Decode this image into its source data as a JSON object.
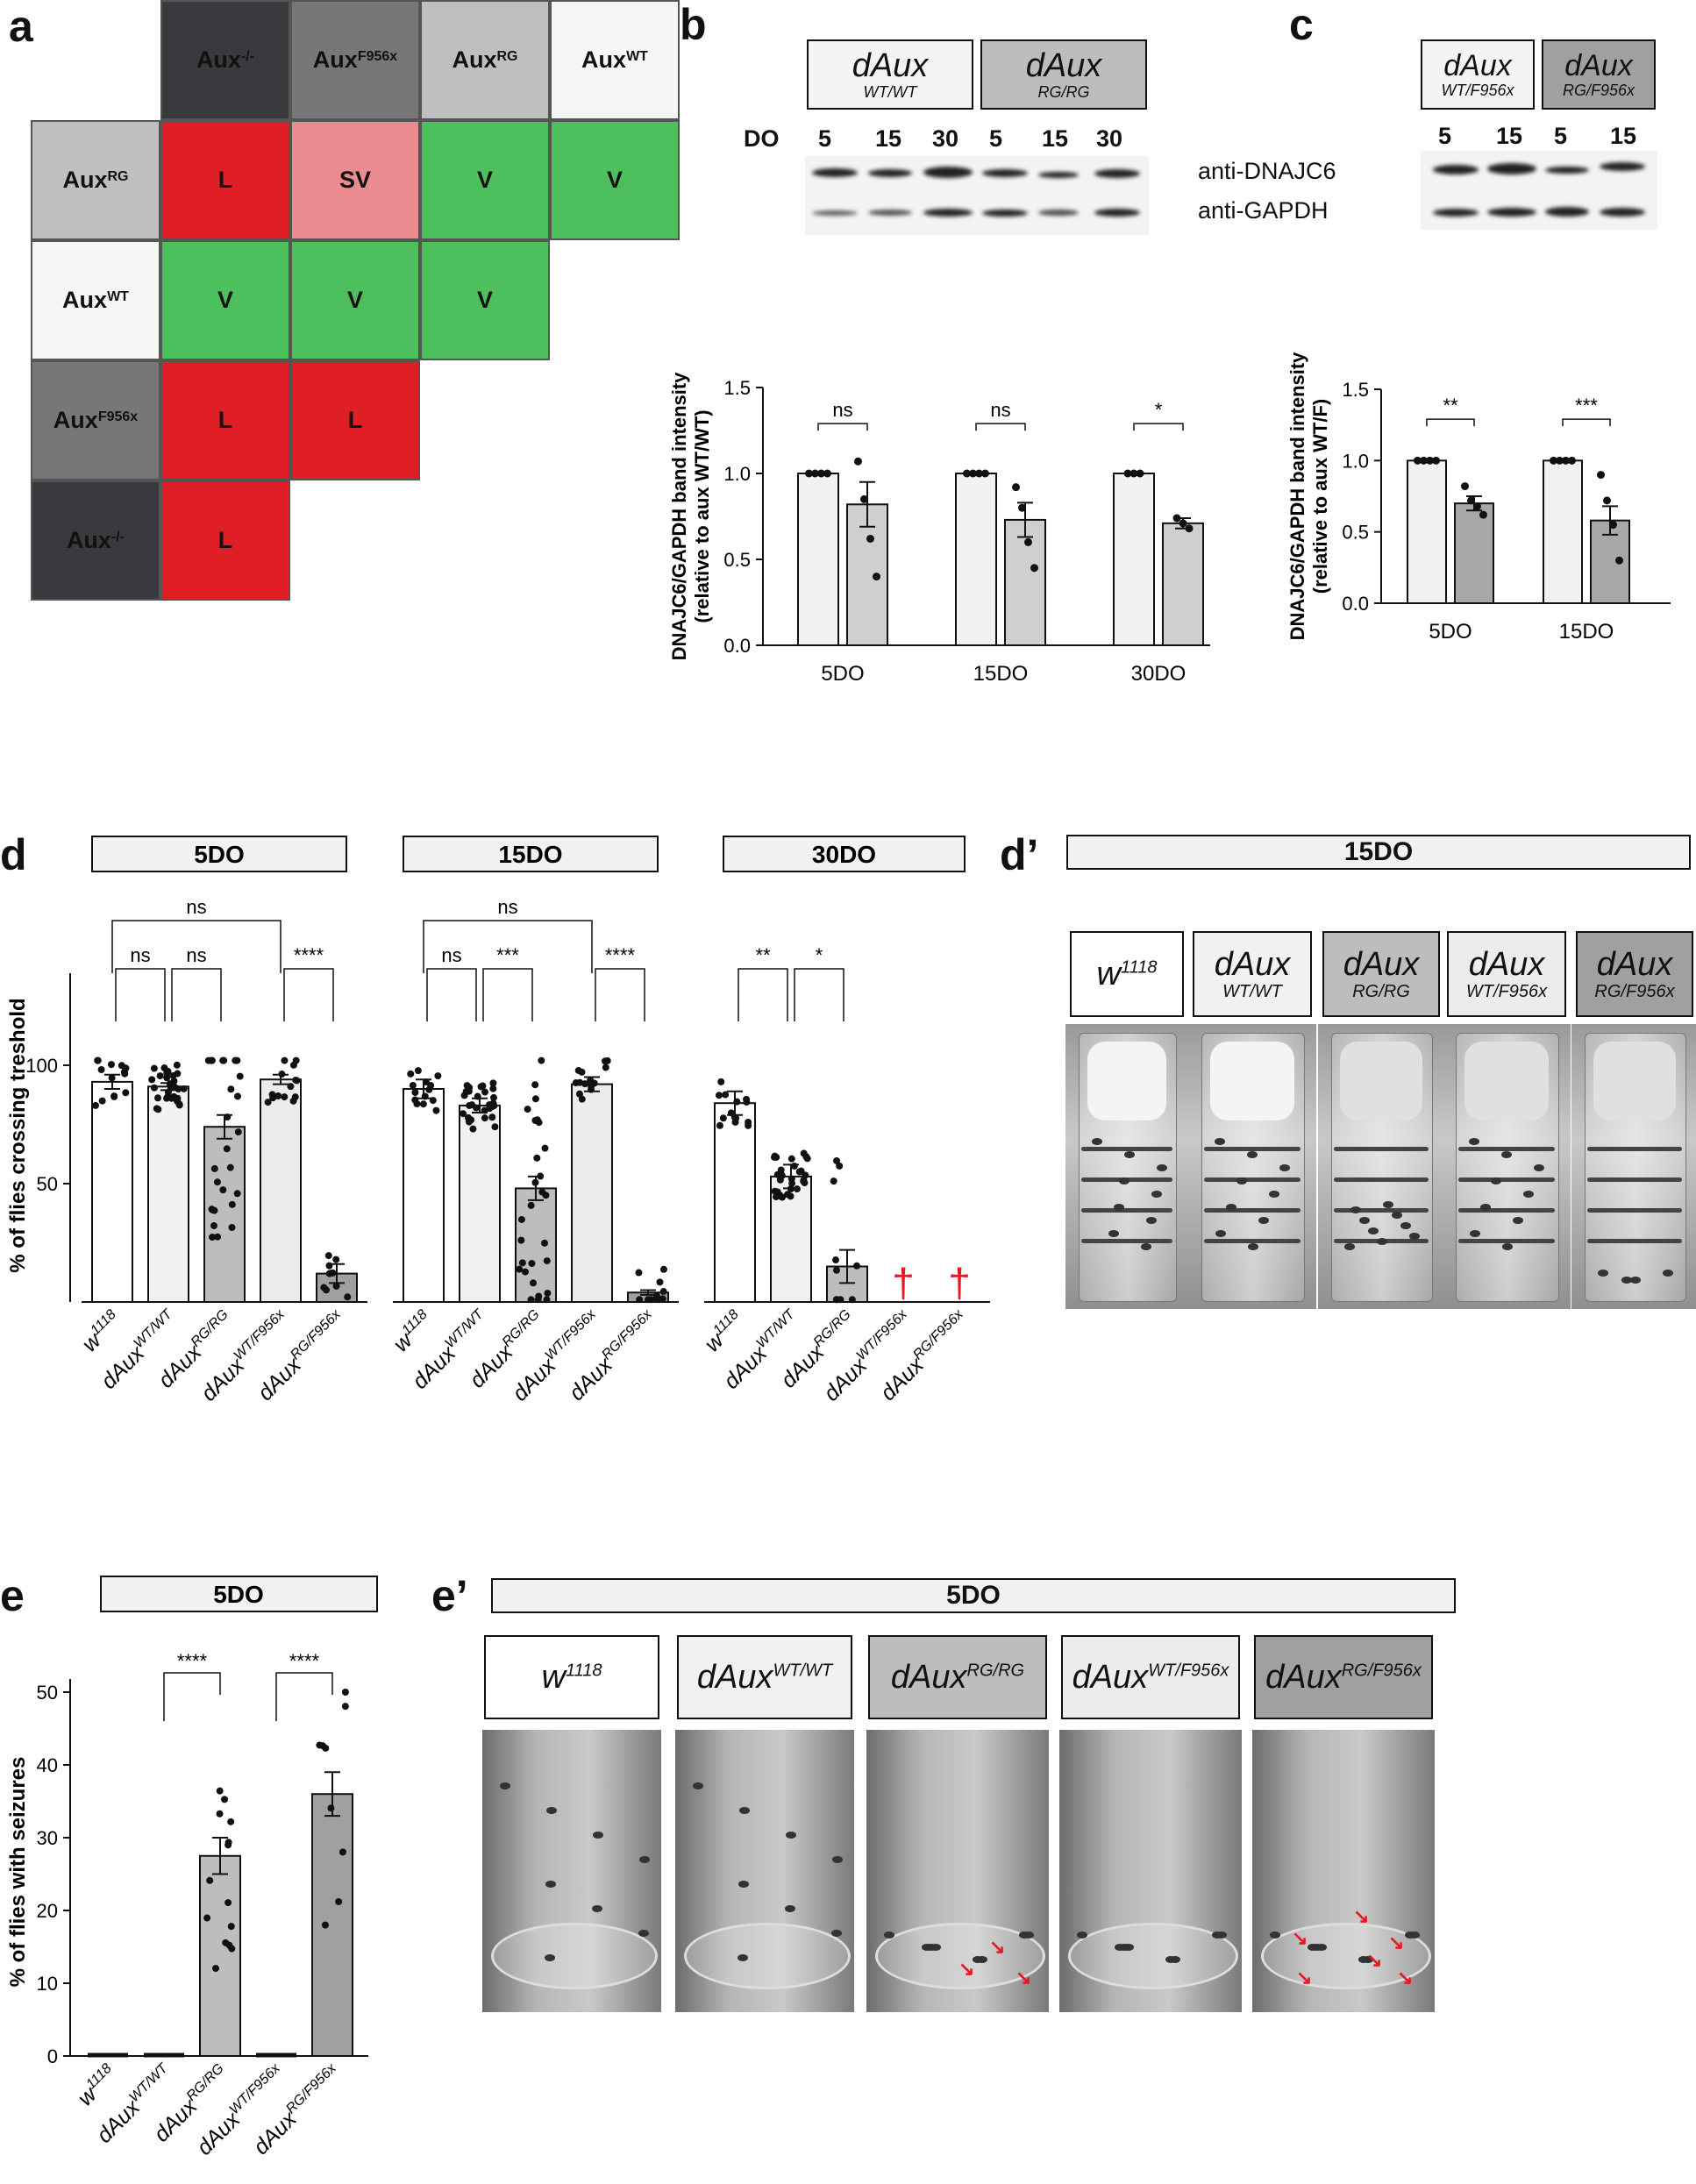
{
  "panel_labels": {
    "a": "a",
    "b": "b",
    "c": "c",
    "d": "d",
    "d_prime": "d’",
    "e": "e",
    "e_prime": "e’"
  },
  "panel_a": {
    "col_headers": [
      {
        "base": "Aux",
        "sup": "-/-"
      },
      {
        "base": "Aux",
        "sup": "F956x"
      },
      {
        "base": "Aux",
        "sup": "RG"
      },
      {
        "base": "Aux",
        "sup": "WT"
      }
    ],
    "row_headers": [
      {
        "base": "Aux",
        "sup": "RG"
      },
      {
        "base": "Aux",
        "sup": "WT"
      },
      {
        "base": "Aux",
        "sup": "F956x"
      },
      {
        "base": "Aux",
        "sup": "-/-"
      }
    ],
    "cells": [
      [
        "L",
        "SV",
        "V",
        "V"
      ],
      [
        "V",
        "V",
        "V"
      ],
      [
        "L",
        "L"
      ],
      [
        "L"
      ]
    ],
    "colors": {
      "L": "#e01e26",
      "SV": "#ea8c8f",
      "V": "#4dbf5c"
    }
  },
  "panel_b": {
    "genotype_boxes": [
      {
        "main": "dAux",
        "sub": "WT/WT"
      },
      {
        "main": "dAux",
        "sub": "RG/RG"
      }
    ],
    "do_label": "DO",
    "lane_labels": [
      "5",
      "15",
      "30",
      "5",
      "15",
      "30"
    ],
    "blot_labels": [
      "anti-DNAJC6",
      "anti-GAPDH"
    ]
  },
  "panel_c": {
    "genotype_boxes": [
      {
        "main": "dAux",
        "sub": "WT/F956x"
      },
      {
        "main": "dAux",
        "sub": "RG/F956x"
      }
    ],
    "lane_labels": [
      "5",
      "15",
      "5",
      "15"
    ]
  },
  "panel_d": {
    "boxes": [
      "5DO",
      "15DO",
      "30DO"
    ]
  },
  "panel_d_prime": {
    "box": "15DO",
    "genotypes": [
      {
        "main": "w",
        "sup": "1118",
        "sub": ""
      },
      {
        "main": "dAux",
        "sup": "",
        "sub": "WT/WT"
      },
      {
        "main": "dAux",
        "sup": "",
        "sub": "RG/RG"
      },
      {
        "main": "dAux",
        "sup": "",
        "sub": "WT/F956x"
      },
      {
        "main": "dAux",
        "sup": "",
        "sub": "RG/F956x"
      }
    ]
  },
  "panel_e": {
    "box": "5DO"
  },
  "panel_e_prime": {
    "box": "5DO",
    "genotypes": [
      {
        "main": "w",
        "sup": "1118"
      },
      {
        "main": "dAux",
        "sup": "WT/WT"
      },
      {
        "main": "dAux",
        "sup": "RG/RG"
      },
      {
        "main": "dAux",
        "sup": "WT/F956x"
      },
      {
        "main": "dAux",
        "sup": "RG/F956x"
      }
    ]
  },
  "chart_data": [
    {
      "type": "bar",
      "id": "b",
      "ylabel": "DNAJC6/GAPDH band intensity (relative to aux  WT/WT)",
      "categories": [
        "5DO",
        "15DO",
        "30DO"
      ],
      "ylim": [
        0,
        1.5
      ],
      "yticks": [
        "0.0",
        "0.5",
        "1.0",
        "1.5"
      ],
      "series": [
        {
          "values": [
            1.0,
            1.0,
            1.0
          ]
        },
        {
          "values": [
            0.82,
            0.73,
            0.71
          ]
        }
      ],
      "errors": [
        [
          0,
          0,
          0
        ],
        [
          0.13,
          0.1,
          0.03
        ]
      ],
      "points": [
        [
          [
            1,
            1,
            1,
            1
          ],
          [
            1.07,
            0.85,
            0.62,
            0.4
          ]
        ],
        [
          [
            1,
            1,
            1,
            1
          ],
          [
            0.92,
            0.8,
            0.6,
            0.45
          ]
        ],
        [
          [
            1,
            1,
            1
          ],
          [
            0.74,
            0.71,
            0.68
          ]
        ]
      ],
      "significance": [
        "ns",
        "ns",
        "*"
      ]
    },
    {
      "type": "bar",
      "id": "c",
      "ylabel": "DNAJC6/GAPDH band intensity (relative to aux  WT/F)",
      "categories": [
        "5DO",
        "15DO"
      ],
      "ylim": [
        0,
        1.5
      ],
      "yticks": [
        "0.0",
        "0.5",
        "1.0",
        "1.5"
      ],
      "series": [
        {
          "values": [
            1.0,
            1.0
          ]
        },
        {
          "values": [
            0.7,
            0.58
          ]
        }
      ],
      "errors": [
        [
          0,
          0
        ],
        [
          0.05,
          0.1
        ]
      ],
      "points": [
        [
          [
            1,
            1,
            1,
            1
          ],
          [
            0.82,
            0.72,
            0.68,
            0.62
          ]
        ],
        [
          [
            1,
            1,
            1,
            1
          ],
          [
            0.9,
            0.72,
            0.55,
            0.3
          ]
        ]
      ],
      "significance": [
        "**",
        "***"
      ]
    },
    {
      "type": "bar",
      "id": "d",
      "ylabel": "% of flies crossing treshold",
      "yticks": [
        "50",
        "100"
      ],
      "ylim": [
        0,
        135
      ],
      "groups": [
        {
          "name": "5DO",
          "categories": [
            {
              "main": "w",
              "sup": "1118"
            },
            {
              "main": "dAux",
              "sup": "WT/WT"
            },
            {
              "main": "dAux",
              "sup": "RG/RG"
            },
            {
              "main": "dAux",
              "sup": "WT/F956x"
            },
            {
              "main": "dAux",
              "sup": "RG/F956x"
            }
          ],
          "values": [
            93,
            91,
            74,
            94,
            12
          ],
          "errors": [
            3,
            1.5,
            5,
            2,
            4
          ],
          "dead": [
            false,
            false,
            false,
            false,
            false
          ]
        },
        {
          "name": "15DO",
          "categories": [
            {
              "main": "w",
              "sup": "1118"
            },
            {
              "main": "dAux",
              "sup": "WT/WT"
            },
            {
              "main": "dAux",
              "sup": "RG/RG"
            },
            {
              "main": "dAux",
              "sup": "WT/F956x"
            },
            {
              "main": "dAux",
              "sup": "RG/F956x"
            }
          ],
          "values": [
            90,
            83,
            48,
            92,
            4
          ],
          "errors": [
            4,
            3,
            5,
            3,
            1
          ],
          "dead": [
            false,
            false,
            false,
            false,
            false
          ]
        },
        {
          "name": "30DO",
          "categories": [
            {
              "main": "w",
              "sup": "1118"
            },
            {
              "main": "dAux",
              "sup": "WT/WT"
            },
            {
              "main": "dAux",
              "sup": "RG/RG"
            },
            {
              "main": "dAux",
              "sup": "WT/F956x"
            },
            {
              "main": "dAux",
              "sup": "RG/F956x"
            }
          ],
          "values": [
            84,
            53,
            15,
            null,
            null
          ],
          "errors": [
            5,
            5,
            7,
            0,
            0
          ],
          "dead": [
            false,
            false,
            false,
            true,
            true
          ]
        }
      ],
      "brackets": [
        {
          "g": 0,
          "a": 0,
          "b": 3,
          "label": "ns",
          "level": 2
        },
        {
          "g": 0,
          "a": 0,
          "b": 1,
          "label": "ns",
          "level": 1
        },
        {
          "g": 0,
          "a": 1,
          "b": 2,
          "label": "ns",
          "level": 1
        },
        {
          "g": 0,
          "a": 3,
          "b": 4,
          "label": "****",
          "level": 1
        },
        {
          "g": 1,
          "a": 0,
          "b": 3,
          "label": "ns",
          "level": 2
        },
        {
          "g": 1,
          "a": 0,
          "b": 1,
          "label": "ns",
          "level": 1
        },
        {
          "g": 1,
          "a": 1,
          "b": 2,
          "label": "***",
          "level": 1
        },
        {
          "g": 1,
          "a": 3,
          "b": 4,
          "label": "****",
          "level": 1
        },
        {
          "g": 2,
          "a": 0,
          "b": 1,
          "label": "**",
          "level": 1
        },
        {
          "g": 2,
          "a": 1,
          "b": 2,
          "label": "*",
          "level": 1
        }
      ],
      "colors": [
        "#ffffff",
        "#f0f1f2",
        "#bdbdbd",
        "#ebeced",
        "#a0a0a0"
      ]
    },
    {
      "type": "bar",
      "id": "e",
      "ylabel": "% of flies with seizures",
      "categories": [
        {
          "main": "w",
          "sup": "1118"
        },
        {
          "main": "dAux",
          "sup": "WT/WT"
        },
        {
          "main": "dAux",
          "sup": "RG/RG"
        },
        {
          "main": "dAux",
          "sup": "WT/F956x"
        },
        {
          "main": "dAux",
          "sup": "RG/F956x"
        }
      ],
      "values": [
        0,
        0,
        27.5,
        0,
        36
      ],
      "errors": [
        0,
        0,
        2.5,
        0,
        3
      ],
      "ylim": [
        0,
        50
      ],
      "yticks": [
        "0",
        "10",
        "20",
        "30",
        "40",
        "50"
      ],
      "significance": [
        {
          "a": 1,
          "b": 2,
          "label": "****"
        },
        {
          "a": 3,
          "b": 4,
          "label": "****"
        }
      ]
    }
  ]
}
